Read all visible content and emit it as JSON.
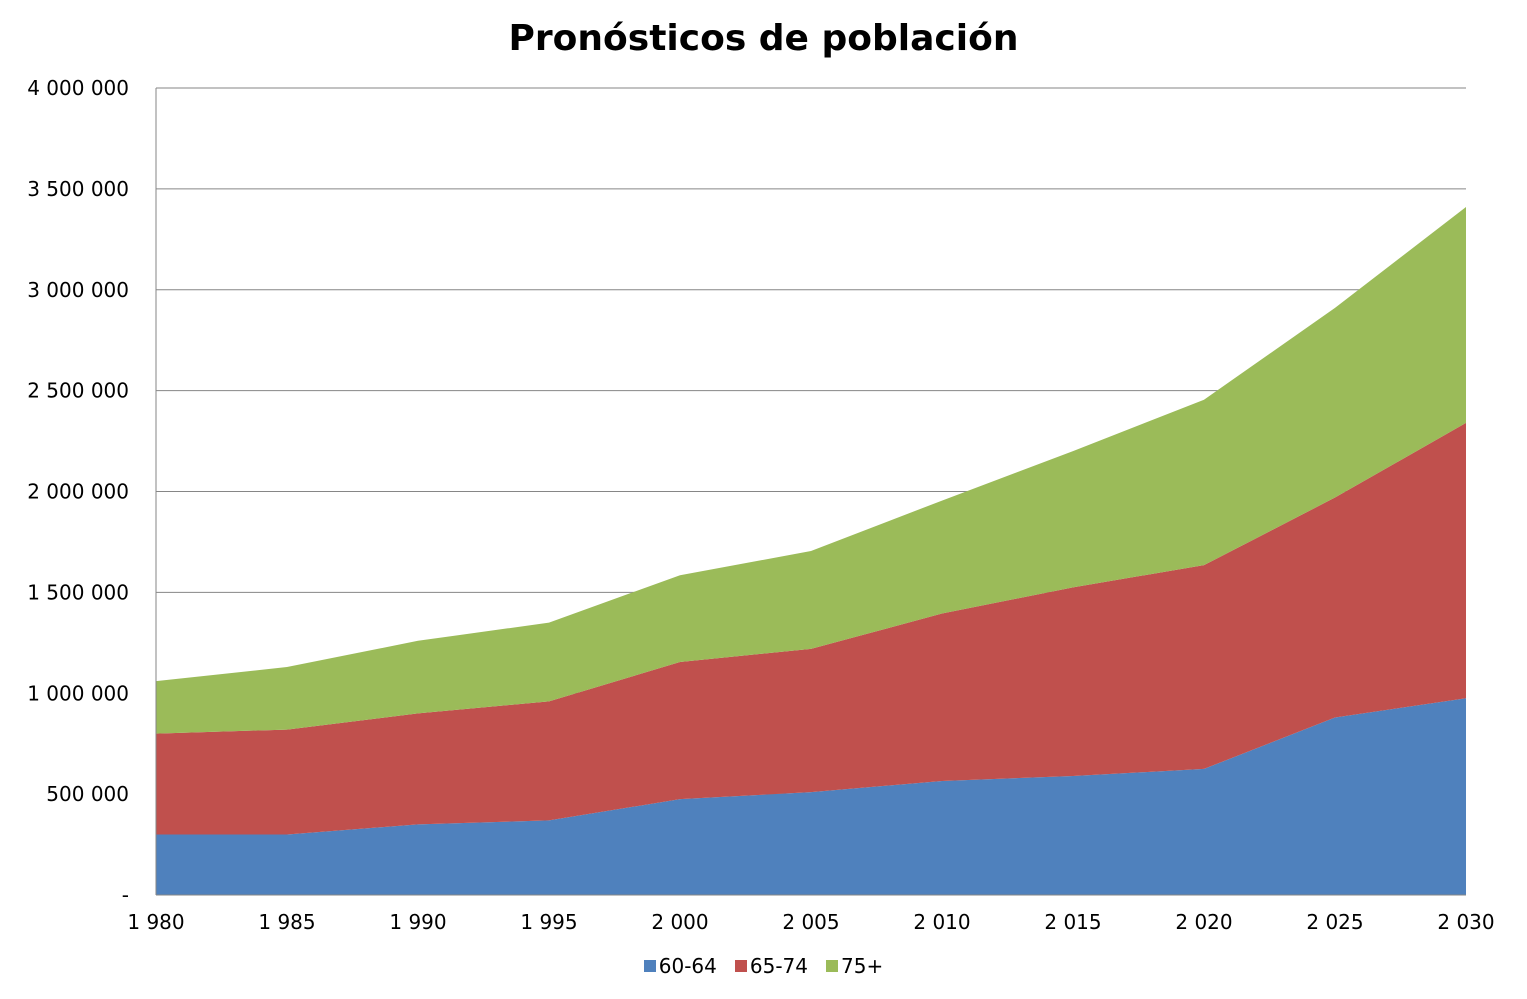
{
  "chart_data": {
    "type": "area",
    "stacked": true,
    "title": "Pronósticos de población",
    "xlabel": "",
    "ylabel": "",
    "categories": [
      "1 980",
      "1 985",
      "1 990",
      "1 995",
      "2 000",
      "2 005",
      "2 010",
      "2 015",
      "2 020",
      "2 025",
      "2 030"
    ],
    "ylim": [
      0,
      4000000
    ],
    "yticks": [
      0,
      500000,
      1000000,
      1500000,
      2000000,
      2500000,
      3000000,
      3500000,
      4000000
    ],
    "ytick_labels": [
      "-",
      "500 000",
      "1 000 000",
      "1 500 000",
      "2 000 000",
      "2 500 000",
      "3 000 000",
      "3 500 000",
      "4 000 000"
    ],
    "grid": true,
    "legend_position": "bottom",
    "series": [
      {
        "name": "60-64",
        "color": "#4F81BD",
        "values": [
          300000,
          300000,
          350000,
          370000,
          475000,
          510000,
          565000,
          590000,
          625000,
          880000,
          975000
        ]
      },
      {
        "name": "65-74",
        "color": "#C0504D",
        "values": [
          500000,
          520000,
          550000,
          590000,
          680000,
          710000,
          830000,
          935000,
          1010000,
          1090000,
          1365000
        ]
      },
      {
        "name": "75+",
        "color": "#9BBB59",
        "values": [
          260000,
          310000,
          360000,
          390000,
          430000,
          485000,
          560000,
          675000,
          820000,
          940000,
          1070000
        ]
      }
    ]
  }
}
